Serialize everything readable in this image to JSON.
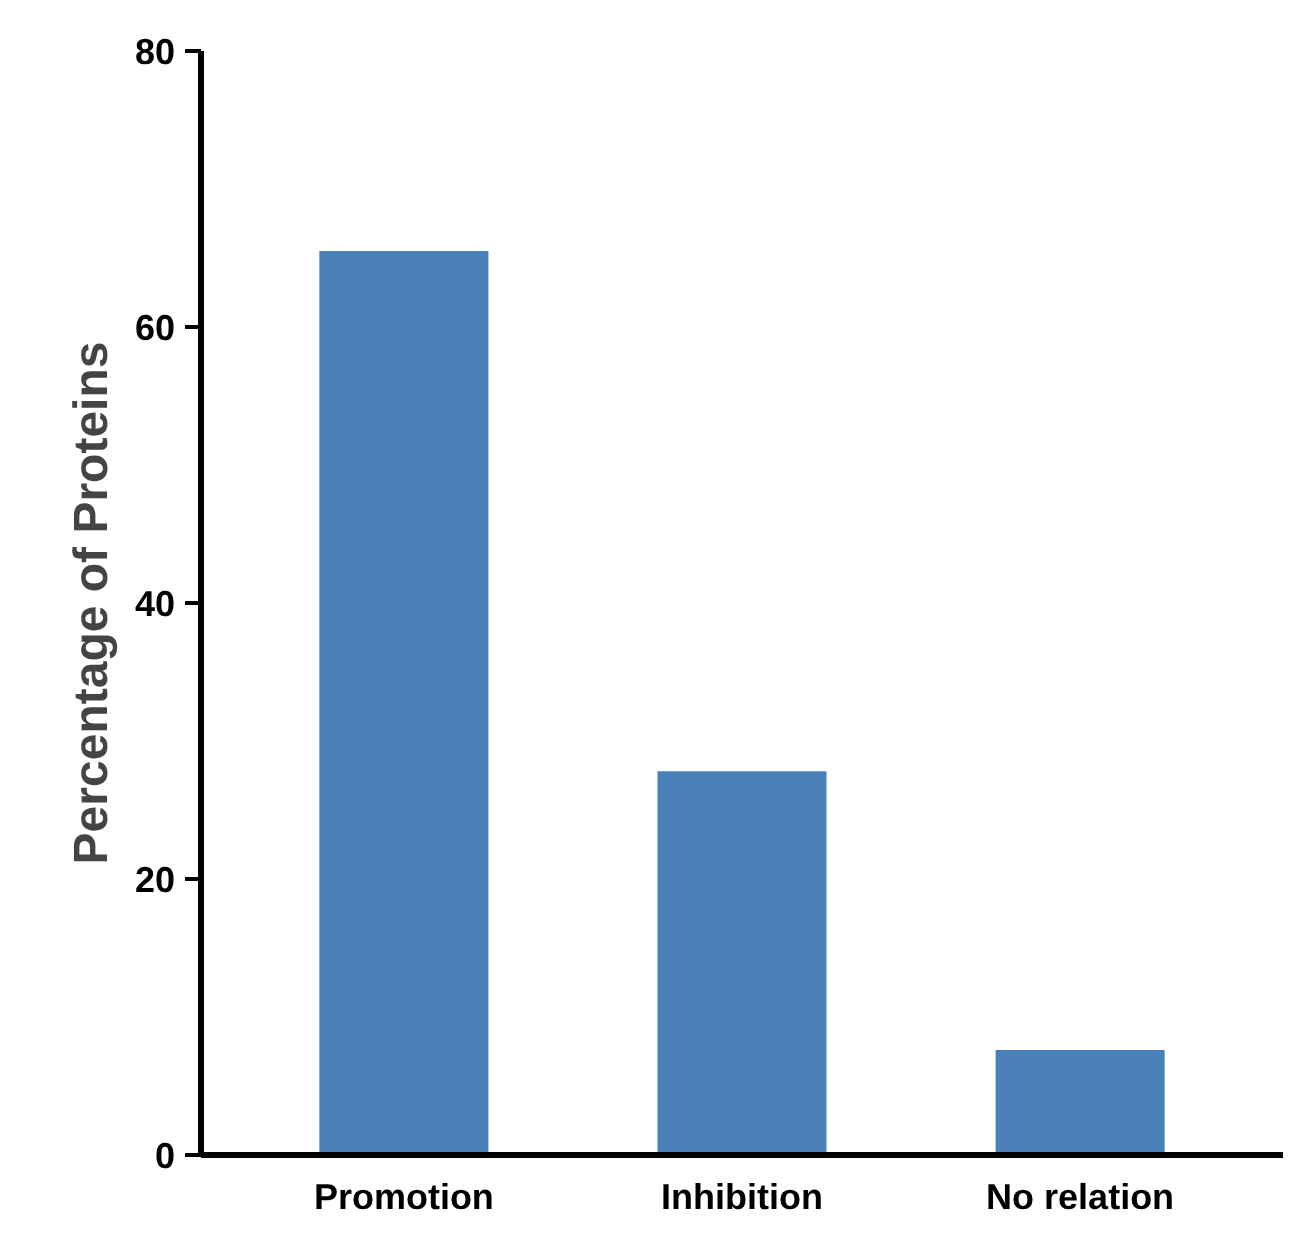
{
  "chart_data": {
    "type": "bar",
    "ylabel": "Percentage of Proteins",
    "categories": [
      "Promotion",
      "Inhibition",
      "No relation"
    ],
    "values": [
      65.5,
      27.8,
      7.6
    ],
    "color": "#4a80b8",
    "ylim": [
      0,
      80
    ],
    "yticks": [
      0,
      20,
      40,
      60,
      80
    ],
    "grid": false
  }
}
